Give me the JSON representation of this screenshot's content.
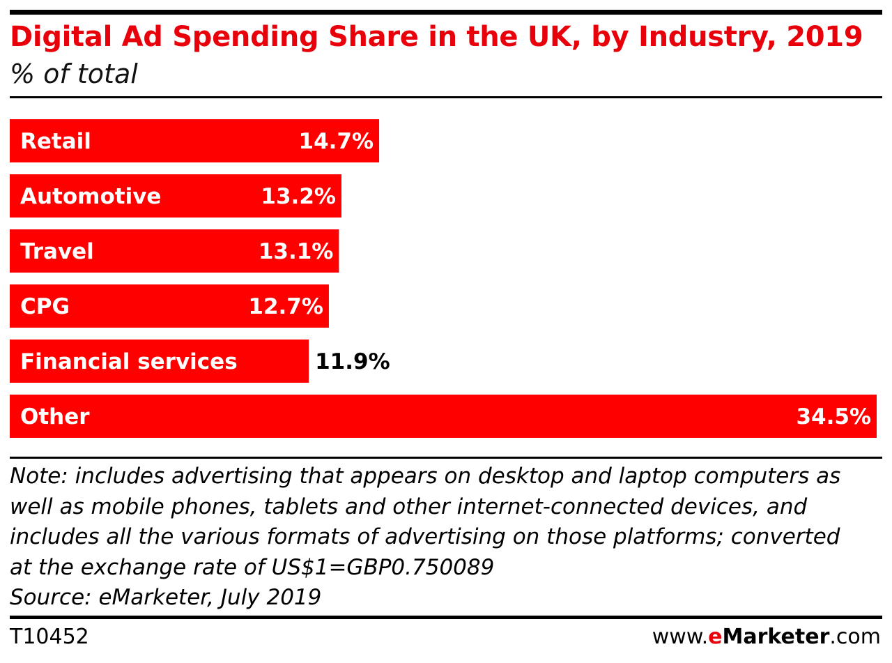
{
  "header": {
    "title": "Digital Ad Spending Share in the UK, by Industry, 2019",
    "subtitle": "% of total"
  },
  "chart_data": {
    "type": "bar",
    "orientation": "horizontal",
    "title": "Digital Ad Spending Share in the UK, by Industry, 2019",
    "subtitle": "% of total",
    "categories": [
      "Retail",
      "Automotive",
      "Travel",
      "CPG",
      "Financial services",
      "Other"
    ],
    "values": [
      14.7,
      13.2,
      13.1,
      12.7,
      11.9,
      34.5
    ],
    "value_labels": [
      "14.7%",
      "13.2%",
      "13.1%",
      "12.7%",
      "11.9%",
      "34.5%"
    ],
    "xlim": [
      0,
      34.5
    ],
    "grid": false,
    "legend": "none",
    "bar_color": "#ff0000"
  },
  "footer": {
    "note_lines": [
      "Note: includes advertising that appears on desktop and laptop computers as",
      "well as mobile phones, tablets and other internet-connected devices, and",
      "includes all the various formats of advertising on those platforms; converted",
      "at the exchange rate of US$1=GBP0.750089"
    ],
    "source": "Source: eMarketer, July 2019",
    "chart_id": "T10452",
    "brand_prefix": "www.",
    "brand_e": "e",
    "brand_name": "Marketer",
    "brand_suffix": ".com"
  }
}
